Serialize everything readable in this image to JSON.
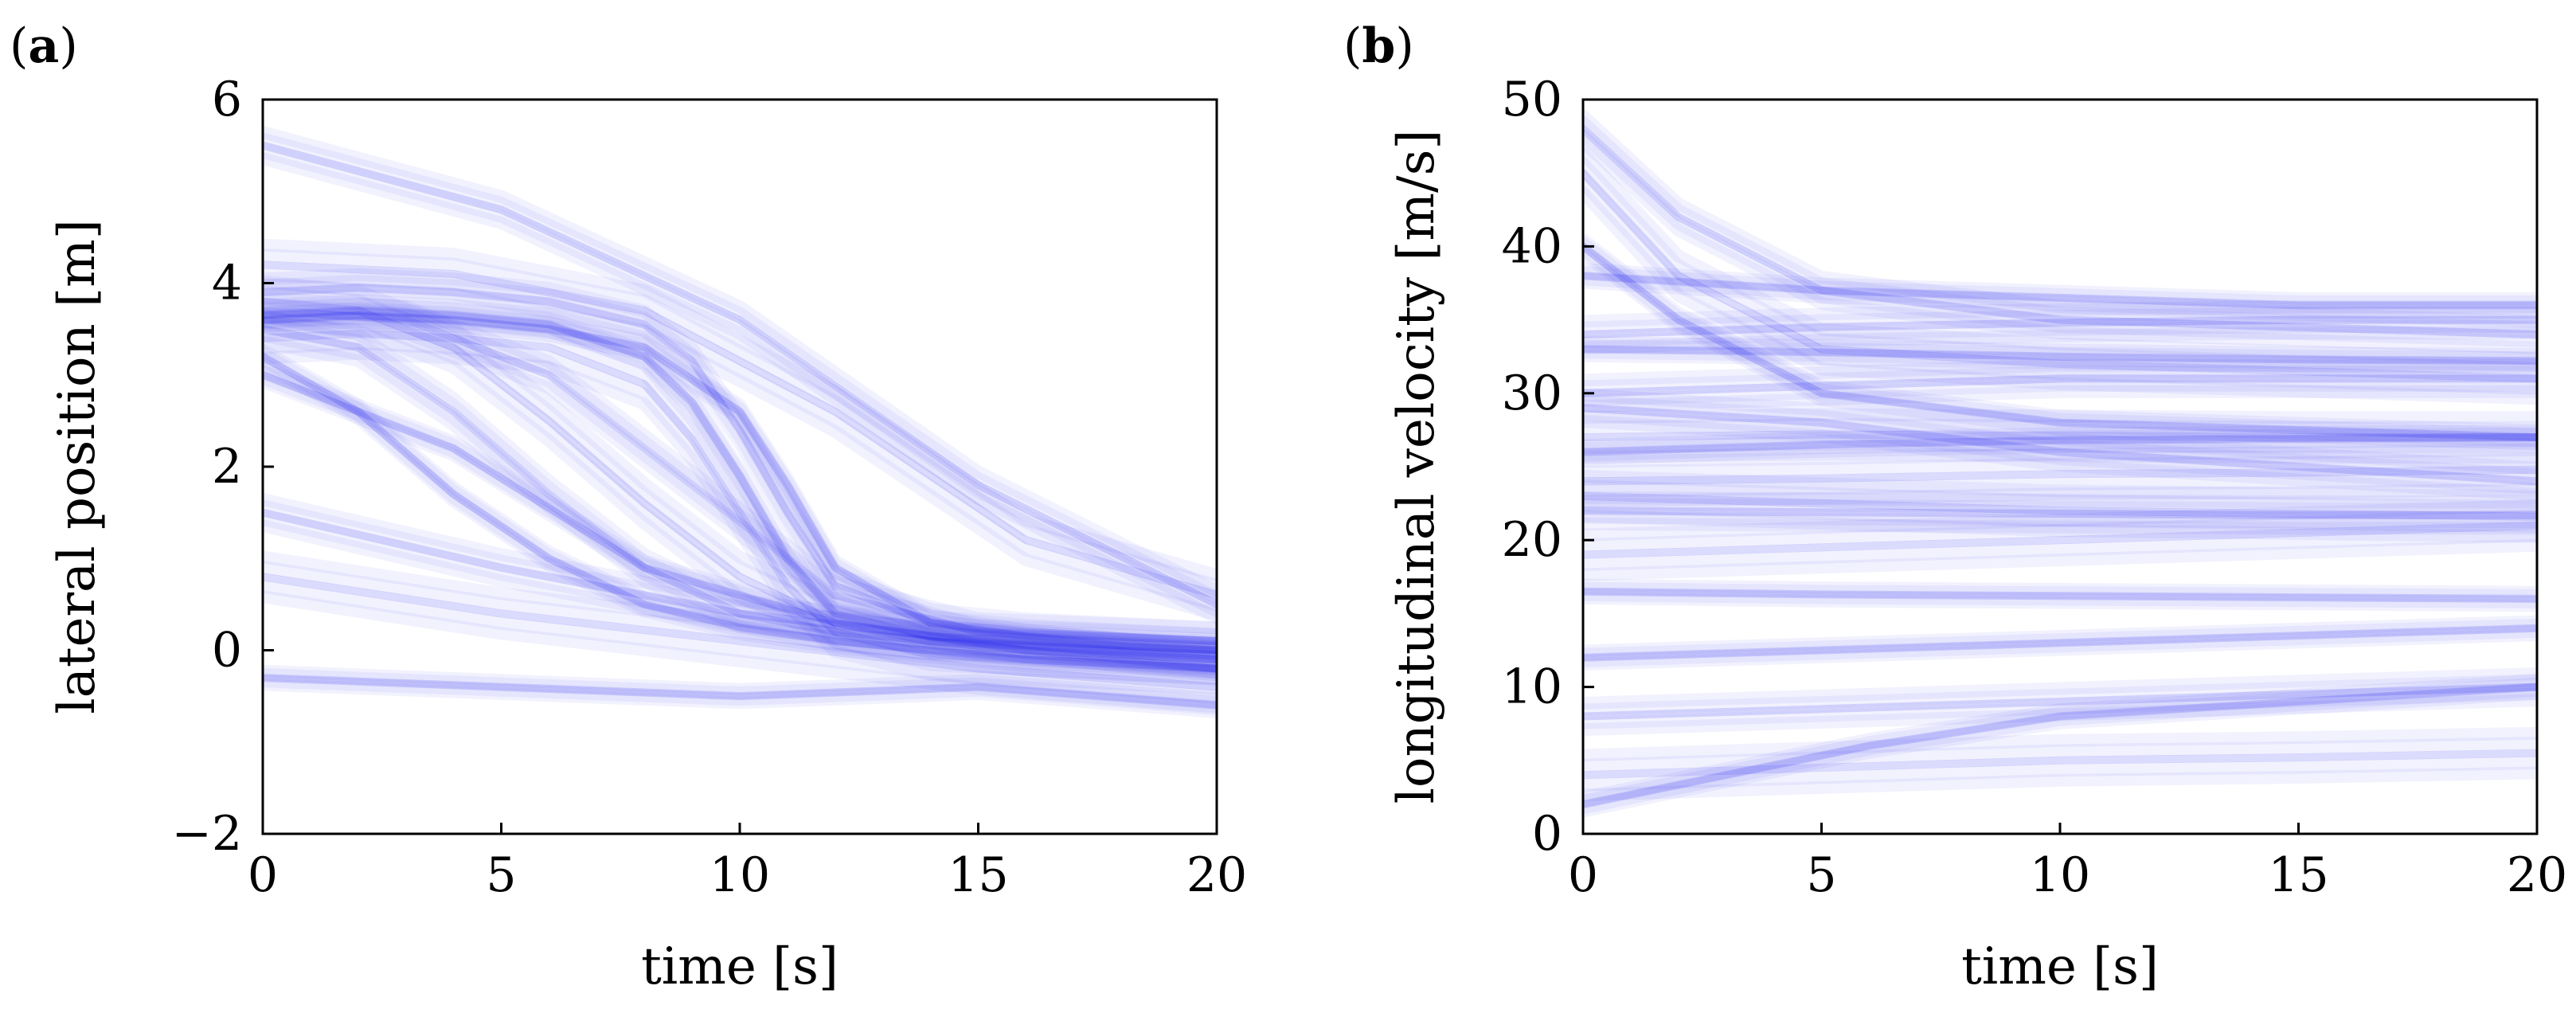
{
  "chart_data": [
    {
      "panel": "(a)",
      "panel_letter": "a",
      "type": "line",
      "xlabel": "time [s]",
      "ylabel": "lateral position [m]",
      "xlim": [
        0,
        20
      ],
      "ylim": [
        -2,
        6
      ],
      "xticks": [
        0,
        5,
        10,
        15,
        20
      ],
      "xtick_labels": [
        "0",
        "5",
        "10",
        "15",
        "20"
      ],
      "yticks": [
        -2,
        0,
        2,
        4,
        6
      ],
      "ytick_labels": [
        "−2",
        "0",
        "2",
        "4",
        "6"
      ],
      "grid": false,
      "color": "#1f1ff0",
      "series": [
        {
          "x": [
            0,
            2,
            4,
            6,
            8,
            9,
            10,
            11,
            12,
            14,
            16,
            18,
            20
          ],
          "y": [
            3.65,
            3.7,
            3.65,
            3.55,
            3.2,
            2.7,
            1.9,
            1.0,
            0.4,
            0.15,
            0.1,
            0.05,
            0.0
          ]
        },
        {
          "x": [
            0,
            2,
            4,
            6,
            8,
            9,
            10,
            11,
            12,
            14,
            16,
            18,
            20
          ],
          "y": [
            3.9,
            3.95,
            3.9,
            3.8,
            3.55,
            3.15,
            2.4,
            1.5,
            0.7,
            0.3,
            0.2,
            0.15,
            0.1
          ]
        },
        {
          "x": [
            0,
            2,
            4,
            6,
            8,
            9,
            10,
            11,
            12,
            14,
            16,
            18,
            20
          ],
          "y": [
            3.4,
            3.45,
            3.4,
            3.3,
            2.9,
            2.3,
            1.5,
            0.7,
            0.2,
            -0.05,
            -0.1,
            -0.15,
            -0.2
          ]
        },
        {
          "x": [
            0,
            2,
            4,
            6,
            8,
            10,
            11,
            12,
            14,
            16,
            18,
            20
          ],
          "y": [
            3.6,
            3.65,
            3.6,
            3.5,
            3.3,
            2.6,
            1.8,
            0.9,
            0.3,
            0.15,
            0.05,
            0.0
          ]
        },
        {
          "x": [
            0,
            2,
            4,
            6,
            8,
            10,
            12,
            14,
            16,
            18,
            20
          ],
          "y": [
            3.5,
            3.3,
            2.6,
            1.7,
            0.9,
            0.4,
            0.2,
            0.1,
            0.05,
            0.0,
            -0.05
          ]
        },
        {
          "x": [
            0,
            2,
            4,
            6,
            8,
            10,
            12,
            14,
            16,
            18,
            20
          ],
          "y": [
            3.8,
            3.7,
            3.3,
            2.5,
            1.6,
            0.8,
            0.3,
            0.1,
            0.0,
            -0.05,
            -0.1
          ]
        },
        {
          "x": [
            0,
            2,
            4,
            6,
            8,
            10,
            12,
            14,
            16,
            18,
            20
          ],
          "y": [
            3.2,
            2.6,
            1.7,
            1.0,
            0.5,
            0.25,
            0.1,
            0.0,
            -0.1,
            -0.15,
            -0.2
          ]
        },
        {
          "x": [
            0,
            3,
            6,
            9,
            12,
            15,
            20
          ],
          "y": [
            3.7,
            3.6,
            3.0,
            1.8,
            0.6,
            0.2,
            0.1
          ]
        },
        {
          "x": [
            0,
            4,
            8,
            12,
            16,
            20
          ],
          "y": [
            4.2,
            4.1,
            3.7,
            2.6,
            1.2,
            0.6
          ]
        },
        {
          "x": [
            0,
            4,
            8,
            12,
            16,
            20
          ],
          "y": [
            3.0,
            2.2,
            0.9,
            0.3,
            0.0,
            -0.2
          ]
        },
        {
          "x": [
            0,
            5,
            10,
            15,
            20
          ],
          "y": [
            5.5,
            4.8,
            3.6,
            1.8,
            0.5
          ]
        },
        {
          "x": [
            0,
            5,
            10,
            15,
            20
          ],
          "y": [
            0.8,
            0.4,
            0.1,
            -0.2,
            -0.4
          ]
        },
        {
          "x": [
            0,
            5,
            10,
            15,
            20
          ],
          "y": [
            -0.3,
            -0.4,
            -0.5,
            -0.4,
            -0.6
          ]
        },
        {
          "x": [
            0,
            5,
            10,
            15,
            20
          ],
          "y": [
            1.5,
            0.9,
            0.4,
            0.1,
            -0.1
          ]
        }
      ]
    },
    {
      "panel": "(b)",
      "panel_letter": "b",
      "type": "line",
      "xlabel": "time [s]",
      "ylabel": "longitudinal velocity [m/s]",
      "xlim": [
        0,
        20
      ],
      "ylim": [
        0,
        50
      ],
      "xticks": [
        0,
        5,
        10,
        15,
        20
      ],
      "xtick_labels": [
        "0",
        "5",
        "10",
        "15",
        "20"
      ],
      "yticks": [
        0,
        10,
        20,
        30,
        40,
        50
      ],
      "ytick_labels": [
        "0",
        "10",
        "20",
        "30",
        "40",
        "50"
      ],
      "grid": false,
      "color": "#1f1ff0",
      "series": [
        {
          "x": [
            0,
            5,
            10,
            15,
            20
          ],
          "y": [
            33,
            32.8,
            32.5,
            32.3,
            32.2
          ]
        },
        {
          "x": [
            0,
            5,
            10,
            15,
            20
          ],
          "y": [
            34,
            34.5,
            34.8,
            35,
            35
          ]
        },
        {
          "x": [
            0,
            5,
            10,
            15,
            20
          ],
          "y": [
            27,
            27.2,
            27.1,
            27.0,
            27.0
          ]
        },
        {
          "x": [
            0,
            5,
            10,
            15,
            20
          ],
          "y": [
            26,
            26.5,
            26.8,
            26.9,
            27.0
          ]
        },
        {
          "x": [
            0,
            5,
            10,
            15,
            20
          ],
          "y": [
            22,
            21.9,
            21.8,
            21.7,
            21.7
          ]
        },
        {
          "x": [
            0,
            5,
            10,
            15,
            20
          ],
          "y": [
            23,
            22.5,
            22.0,
            21.8,
            21.6
          ]
        },
        {
          "x": [
            0,
            5,
            10,
            15,
            20
          ],
          "y": [
            16.5,
            16.3,
            16.2,
            16.1,
            16.0
          ]
        },
        {
          "x": [
            0,
            2,
            5,
            10,
            15,
            20
          ],
          "y": [
            48,
            42,
            37,
            35,
            34.5,
            34
          ]
        },
        {
          "x": [
            0,
            2,
            5,
            10,
            15,
            20
          ],
          "y": [
            45,
            38,
            33,
            32,
            31.5,
            31
          ]
        },
        {
          "x": [
            0,
            2,
            5,
            10,
            15,
            20
          ],
          "y": [
            40,
            35,
            30,
            28,
            27.5,
            27
          ]
        },
        {
          "x": [
            0,
            5,
            10,
            15,
            20
          ],
          "y": [
            29,
            28,
            26,
            25,
            24
          ]
        },
        {
          "x": [
            0,
            5,
            10,
            15,
            20
          ],
          "y": [
            19,
            19.5,
            20,
            20.5,
            21
          ]
        },
        {
          "x": [
            0,
            5,
            10,
            15,
            20
          ],
          "y": [
            12,
            12.5,
            13,
            13.5,
            14
          ]
        },
        {
          "x": [
            0,
            5,
            10,
            15,
            20
          ],
          "y": [
            8,
            8.5,
            9,
            9.5,
            10
          ]
        },
        {
          "x": [
            0,
            5,
            10,
            15,
            20
          ],
          "y": [
            4,
            4.5,
            5,
            5.2,
            5.5
          ]
        },
        {
          "x": [
            0,
            5,
            10,
            15,
            20
          ],
          "y": [
            38,
            37,
            36.5,
            36,
            36
          ]
        },
        {
          "x": [
            0,
            5,
            10,
            15,
            20
          ],
          "y": [
            30,
            30.5,
            31,
            31,
            31
          ]
        },
        {
          "x": [
            0,
            5,
            10,
            15,
            20
          ],
          "y": [
            24,
            24.2,
            24.5,
            24.6,
            24.8
          ]
        },
        {
          "x": [
            0,
            3,
            6,
            10,
            15,
            20
          ],
          "y": [
            2,
            4,
            6,
            8,
            9,
            10
          ]
        }
      ]
    }
  ]
}
